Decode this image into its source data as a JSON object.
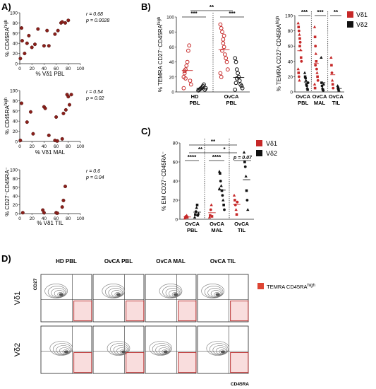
{
  "panel_labels": {
    "A": "A)",
    "B": "B)",
    "C": "C)",
    "D": "D)"
  },
  "chart_data": [
    {
      "id": "A1",
      "type": "scatter",
      "xlabel": "% Vδ1 PBL",
      "ylabel": "% CD45RA^high",
      "xlim": [
        0,
        100
      ],
      "ylim": [
        0,
        100
      ],
      "xticks": [
        "0",
        "20",
        "40",
        "60",
        "80",
        "100"
      ],
      "yticks": [
        "0",
        "20",
        "40",
        "60",
        "80",
        "100"
      ],
      "stats": [
        "r = 0.68",
        "p = 0.0028"
      ],
      "points": [
        [
          1,
          10
        ],
        [
          3,
          70
        ],
        [
          4,
          45
        ],
        [
          8,
          20
        ],
        [
          12,
          40
        ],
        [
          15,
          55
        ],
        [
          20,
          32
        ],
        [
          25,
          38
        ],
        [
          30,
          68
        ],
        [
          40,
          35
        ],
        [
          45,
          65
        ],
        [
          48,
          35
        ],
        [
          58,
          58
        ],
        [
          63,
          65
        ],
        [
          68,
          80
        ],
        [
          70,
          82
        ],
        [
          75,
          80
        ],
        [
          80,
          85
        ]
      ]
    },
    {
      "id": "A2",
      "type": "scatter",
      "xlabel": "% Vδ1 MAL",
      "ylabel": "% CD45RA^high",
      "xlim": [
        0,
        100
      ],
      "ylim": [
        0,
        100
      ],
      "xticks": [
        "0",
        "20",
        "40",
        "60",
        "80",
        "100"
      ],
      "yticks": [
        "0",
        "20",
        "40",
        "60",
        "80",
        "100"
      ],
      "stats": [
        "r = 0.54",
        "p = 0.02"
      ],
      "points": [
        [
          1,
          2
        ],
        [
          3,
          75
        ],
        [
          12,
          38
        ],
        [
          18,
          58
        ],
        [
          22,
          15
        ],
        [
          40,
          68
        ],
        [
          42,
          65
        ],
        [
          48,
          12
        ],
        [
          58,
          2
        ],
        [
          60,
          48
        ],
        [
          62,
          1
        ],
        [
          70,
          5
        ],
        [
          72,
          55
        ],
        [
          76,
          62
        ],
        [
          78,
          92
        ],
        [
          80,
          88
        ],
        [
          82,
          72
        ],
        [
          85,
          92
        ]
      ]
    },
    {
      "id": "A3",
      "type": "scatter",
      "xlabel": "% Vδ1 TIL",
      "ylabel": "% CD27⁻CD45RA⁻",
      "xlim": [
        0,
        100
      ],
      "ylim": [
        0,
        100
      ],
      "xticks": [
        "0",
        "20",
        "40",
        "60",
        "80",
        "100"
      ],
      "yticks": [
        "0",
        "20",
        "40",
        "60",
        "80",
        "100"
      ],
      "stats": [
        "r = 0.6",
        "p = 0.04"
      ],
      "points": [
        [
          5,
          2
        ],
        [
          38,
          8
        ],
        [
          40,
          2
        ],
        [
          60,
          2
        ],
        [
          62,
          1
        ],
        [
          70,
          15
        ],
        [
          72,
          30
        ],
        [
          75,
          62
        ]
      ]
    },
    {
      "id": "B1",
      "type": "scatter",
      "ylabel": "% TEMRA CD27⁻CD45RA^high",
      "ylim": [
        0,
        100
      ],
      "yticks": [
        "0",
        "20",
        "40",
        "60",
        "80",
        "100"
      ],
      "categories": [
        "HD PBL",
        "OvCA PBL"
      ],
      "significance": [
        "***",
        "***",
        "**"
      ],
      "series": [
        {
          "name": "Vδ1",
          "values": [
            [
              1,
              20
            ],
            [
              1,
              25
            ],
            [
              1,
              30
            ],
            [
              1,
              35
            ],
            [
              1,
              40
            ],
            [
              1,
              55
            ],
            [
              1,
              62
            ],
            [
              1,
              15
            ],
            [
              1,
              10
            ],
            [
              1,
              5
            ],
            [
              1,
              28
            ],
            [
              1,
              18
            ]
          ]
        },
        {
          "name": "Vδ2",
          "values": [
            [
              1,
              2
            ],
            [
              1,
              3
            ],
            [
              1,
              4
            ],
            [
              1,
              5
            ],
            [
              1,
              6
            ],
            [
              1,
              8
            ],
            [
              1,
              10
            ],
            [
              1,
              3
            ],
            [
              1,
              5
            ],
            [
              1,
              2
            ]
          ]
        },
        {
          "name": "Vδ1",
          "values": [
            [
              2,
              90
            ],
            [
              2,
              85
            ],
            [
              2,
              80
            ],
            [
              2,
              70
            ],
            [
              2,
              60
            ],
            [
              2,
              50
            ],
            [
              2,
              45
            ],
            [
              2,
              40
            ],
            [
              2,
              30
            ],
            [
              2,
              25
            ],
            [
              2,
              20
            ],
            [
              2,
              55
            ],
            [
              2,
              65
            ],
            [
              2,
              75
            ]
          ]
        },
        {
          "name": "Vδ2",
          "values": [
            [
              2,
              45
            ],
            [
              2,
              40
            ],
            [
              2,
              30
            ],
            [
              2,
              25
            ],
            [
              2,
              20
            ],
            [
              2,
              15
            ],
            [
              2,
              10
            ],
            [
              2,
              8
            ],
            [
              2,
              5
            ],
            [
              2,
              3
            ],
            [
              2,
              12
            ],
            [
              2,
              18
            ]
          ]
        }
      ]
    },
    {
      "id": "B2",
      "type": "scatter",
      "ylabel": "% TEMRA CD27⁻CD45RA^high",
      "ylim": [
        0,
        100
      ],
      "yticks": [
        "0",
        "20",
        "40",
        "60",
        "80",
        "100"
      ],
      "categories": [
        "OvCA PBL",
        "OvCA MAL",
        "OvCA TIL"
      ],
      "significance": [
        "***",
        "***",
        "**"
      ],
      "series": [
        {
          "name": "Vδ1",
          "values": [
            [
              1,
              90
            ],
            [
              1,
              85
            ],
            [
              1,
              80
            ],
            [
              1,
              75
            ],
            [
              1,
              70
            ],
            [
              1,
              65
            ],
            [
              1,
              55
            ],
            [
              1,
              45
            ],
            [
              1,
              40
            ],
            [
              1,
              30
            ],
            [
              1,
              25
            ],
            [
              1,
              20
            ],
            [
              1,
              15
            ],
            [
              1,
              60
            ]
          ]
        },
        {
          "name": "Vδ2",
          "values": [
            [
              1,
              25
            ],
            [
              1,
              20
            ],
            [
              1,
              18
            ],
            [
              1,
              15
            ],
            [
              1,
              10
            ],
            [
              1,
              8
            ],
            [
              1,
              5
            ],
            [
              1,
              3
            ],
            [
              1,
              12
            ]
          ]
        },
        {
          "name": "Vδ1",
          "values": [
            [
              2,
              85
            ],
            [
              2,
              72
            ],
            [
              2,
              60
            ],
            [
              2,
              50
            ],
            [
              2,
              40
            ],
            [
              2,
              30
            ],
            [
              2,
              25
            ],
            [
              2,
              20
            ],
            [
              2,
              15
            ],
            [
              2,
              10
            ],
            [
              2,
              5
            ],
            [
              2,
              35
            ]
          ]
        },
        {
          "name": "Vδ2",
          "values": [
            [
              2,
              45
            ],
            [
              2,
              12
            ],
            [
              2,
              8
            ],
            [
              2,
              5
            ],
            [
              2,
              3
            ],
            [
              2,
              2
            ],
            [
              2,
              10
            ]
          ]
        },
        {
          "name": "Vδ1",
          "values": [
            [
              3,
              45
            ],
            [
              3,
              35
            ],
            [
              3,
              25
            ],
            [
              3,
              15
            ],
            [
              3,
              10
            ],
            [
              3,
              5
            ]
          ]
        },
        {
          "name": "Vδ2",
          "values": [
            [
              3,
              8
            ],
            [
              3,
              5
            ],
            [
              3,
              3
            ],
            [
              3,
              2
            ]
          ]
        }
      ]
    },
    {
      "id": "C",
      "type": "scatter",
      "ylabel": "% EM CD27⁻CD45RA⁻",
      "ylim": [
        0,
        80
      ],
      "yticks": [
        "0",
        "20",
        "40",
        "60",
        "80"
      ],
      "categories": [
        "OvCA PBL",
        "OvCA MAL",
        "OvCA TIL"
      ],
      "significance": [
        "****",
        "****",
        "**",
        "*",
        "**",
        "p = 0.07"
      ],
      "series": [
        {
          "name": "Vδ1",
          "values": [
            [
              1,
              1
            ],
            [
              1,
              2
            ],
            [
              1,
              3
            ],
            [
              1,
              4
            ],
            [
              1,
              2
            ]
          ]
        },
        {
          "name": "Vδ2",
          "values": [
            [
              1,
              2
            ],
            [
              1,
              5
            ],
            [
              1,
              8
            ],
            [
              1,
              12
            ],
            [
              1,
              15
            ],
            [
              1,
              4
            ],
            [
              1,
              6
            ]
          ]
        },
        {
          "name": "Vδ1",
          "values": [
            [
              2,
              2
            ],
            [
              2,
              4
            ],
            [
              2,
              10
            ],
            [
              2,
              15
            ],
            [
              2,
              3
            ]
          ]
        },
        {
          "name": "Vδ2",
          "values": [
            [
              2,
              50
            ],
            [
              2,
              48
            ],
            [
              2,
              40
            ],
            [
              2,
              35
            ],
            [
              2,
              30
            ],
            [
              2,
              25
            ],
            [
              2,
              20
            ],
            [
              2,
              15
            ],
            [
              2,
              10
            ],
            [
              2,
              32
            ]
          ]
        },
        {
          "name": "Vδ1",
          "values": [
            [
              3,
              25
            ],
            [
              3,
              20
            ],
            [
              3,
              15
            ],
            [
              3,
              10
            ],
            [
              3,
              5
            ],
            [
              3,
              18
            ]
          ]
        },
        {
          "name": "Vδ2",
          "values": [
            [
              3,
              70
            ],
            [
              3,
              60
            ],
            [
              3,
              55
            ],
            [
              3,
              45
            ],
            [
              3,
              30
            ],
            [
              3,
              20
            ],
            [
              3,
              10
            ]
          ]
        }
      ]
    }
  ],
  "legend": {
    "vd1": "Vδ1",
    "vd2": "Vδ2",
    "colors": {
      "vd1": "#c62828",
      "vd2": "#111111"
    }
  },
  "panel_d": {
    "columns": [
      "HD PBL",
      "OvCA PBL",
      "OvCA MAL",
      "OvCA TIL"
    ],
    "rows": [
      "Vδ1",
      "Vδ2"
    ],
    "yaxis": "CD27",
    "xaxis": "CD45RA",
    "legend": "TEMRA CD45RA^high"
  }
}
